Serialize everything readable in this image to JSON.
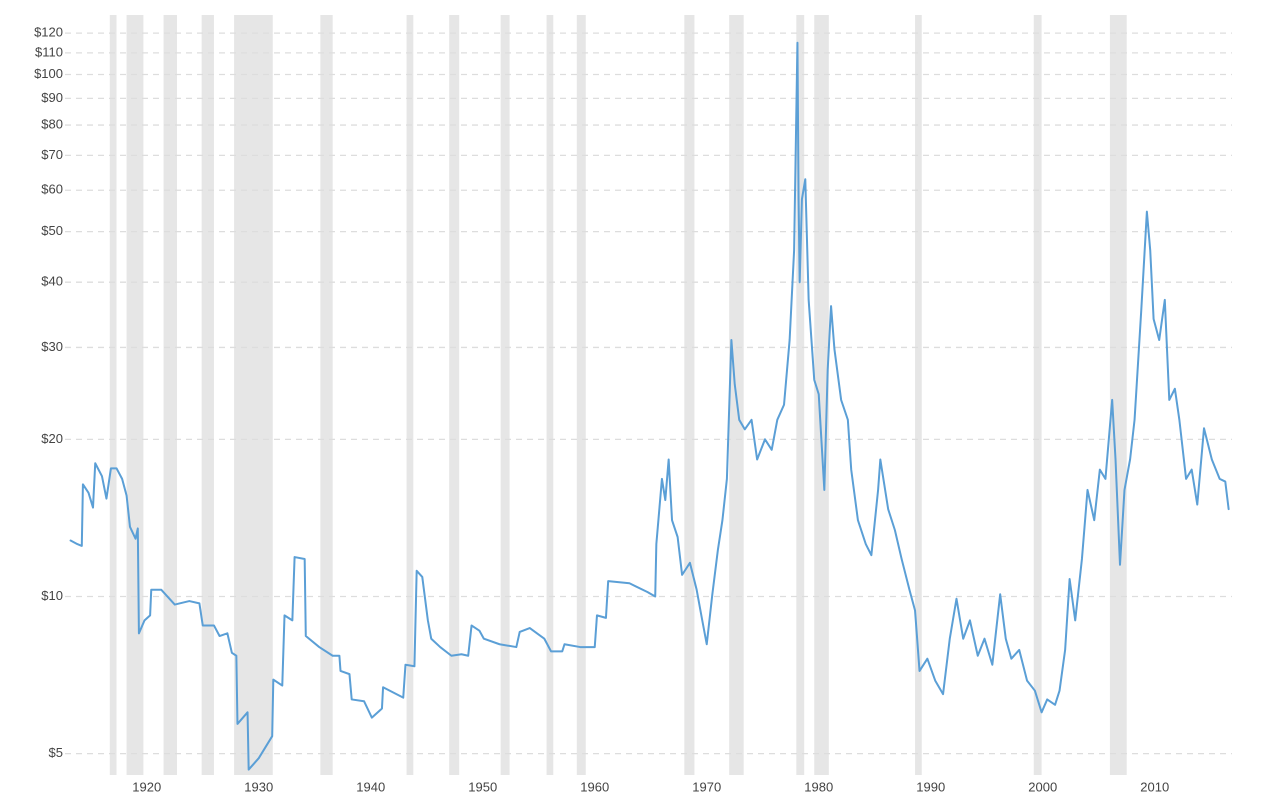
{
  "chart_data": {
    "type": "line",
    "log_scale": true,
    "grid": true,
    "color": "#5b9fd6",
    "band_color": "#e6e6e6",
    "xlim": [
      1912.7,
      2016.9
    ],
    "xticks": [
      1920,
      1930,
      1940,
      1950,
      1960,
      1970,
      1980,
      1990,
      2000,
      2010
    ],
    "ylim": [
      4.55,
      130
    ],
    "yticks": [
      {
        "value": 5,
        "label": "$5"
      },
      {
        "value": 10,
        "label": "$10"
      },
      {
        "value": 20,
        "label": "$20"
      },
      {
        "value": 30,
        "label": "$30"
      },
      {
        "value": 40,
        "label": "$40"
      },
      {
        "value": 50,
        "label": "$50"
      },
      {
        "value": 60,
        "label": "$60"
      },
      {
        "value": 70,
        "label": "$70"
      },
      {
        "value": 80,
        "label": "$80"
      },
      {
        "value": 90,
        "label": "$90"
      },
      {
        "value": 100,
        "label": "$100"
      },
      {
        "value": 110,
        "label": "$110"
      },
      {
        "value": 120,
        "label": "$120"
      }
    ],
    "bands": [
      [
        1916.7,
        1917.3
      ],
      [
        1918.2,
        1919.7
      ],
      [
        1921.5,
        1922.7
      ],
      [
        1924.9,
        1926.0
      ],
      [
        1927.8,
        1931.25
      ],
      [
        1935.5,
        1936.6
      ],
      [
        1943.2,
        1943.8
      ],
      [
        1947.0,
        1947.9
      ],
      [
        1951.6,
        1952.4
      ],
      [
        1955.7,
        1956.3
      ],
      [
        1958.4,
        1959.2
      ],
      [
        1968.0,
        1968.9
      ],
      [
        1972.0,
        1973.3
      ],
      [
        1978.0,
        1978.7
      ],
      [
        1979.6,
        1980.9
      ],
      [
        1988.6,
        1989.2
      ],
      [
        1999.2,
        1999.9
      ],
      [
        2006.0,
        2007.5
      ]
    ],
    "x": [
      1913.2,
      1913.8,
      1914.2,
      1914.3,
      1914.8,
      1915.2,
      1915.4,
      1916.0,
      1916.4,
      1916.8,
      1917.3,
      1917.8,
      1918.2,
      1918.5,
      1919.0,
      1919.2,
      1919.3,
      1919.8,
      1920.3,
      1920.4,
      1921.3,
      1922.5,
      1923.8,
      1924.7,
      1925.0,
      1926.0,
      1926.5,
      1927.2,
      1927.6,
      1928.0,
      1928.1,
      1929.0,
      1929.1,
      1930.0,
      1931.2,
      1931.3,
      1932.1,
      1932.3,
      1933.0,
      1933.2,
      1934.1,
      1934.2,
      1935.4,
      1936.6,
      1937.2,
      1937.3,
      1938.1,
      1938.3,
      1939.4,
      1940.1,
      1941.0,
      1941.1,
      1942.9,
      1943.1,
      1943.9,
      1944.1,
      1944.6,
      1945.1,
      1945.4,
      1946.2,
      1947.2,
      1948.1,
      1948.7,
      1949.0,
      1949.7,
      1950.1,
      1951.5,
      1953.0,
      1953.3,
      1954.2,
      1955.5,
      1956.1,
      1957.1,
      1957.3,
      1958.7,
      1960.0,
      1960.2,
      1961.0,
      1961.2,
      1963.1,
      1964.7,
      1965.4,
      1965.5,
      1966.0,
      1966.3,
      1966.6,
      1966.9,
      1967.4,
      1967.8,
      1968.5,
      1969.1,
      1969.6,
      1970.0,
      1970.5,
      1971.0,
      1971.4,
      1971.8,
      1972.2,
      1972.5,
      1972.9,
      1973.4,
      1974.0,
      1974.5,
      1975.2,
      1975.8,
      1976.3,
      1976.9,
      1977.4,
      1977.8,
      1978.1,
      1978.2,
      1978.3,
      1978.5,
      1978.8,
      1979.1,
      1979.6,
      1980.0,
      1980.5,
      1980.8,
      1981.1,
      1981.4,
      1982.0,
      1982.6,
      1982.9,
      1983.5,
      1984.2,
      1984.7,
      1985.3,
      1985.5,
      1986.2,
      1986.8,
      1987.4,
      1988.1,
      1988.6,
      1989.0,
      1989.7,
      1990.4,
      1991.1,
      1991.7,
      1992.3,
      1992.9,
      1993.5,
      1994.2,
      1994.8,
      1995.5,
      1996.2,
      1996.7,
      1997.2,
      1997.9,
      1998.6,
      1999.3,
      1999.9,
      2000.4,
      2001.1,
      2001.5,
      2002.0,
      2002.4,
      2002.9,
      2003.5,
      2004.0,
      2004.6,
      2005.1,
      2005.6,
      2006.2,
      2006.5,
      2006.9,
      2007.3,
      2007.8,
      2008.2,
      2008.8,
      2009.3,
      2009.6,
      2009.9,
      2010.4,
      2010.9,
      2011.3,
      2011.8,
      2012.2,
      2012.8,
      2013.3,
      2013.8,
      2014.4,
      2015.1,
      2015.8,
      2016.3,
      2016.6
    ],
    "values": [
      12.8,
      12.6,
      12.5,
      16.4,
      15.8,
      14.8,
      18.0,
      17.0,
      15.4,
      17.6,
      17.6,
      16.8,
      15.6,
      13.6,
      12.9,
      13.5,
      8.5,
      9.0,
      9.2,
      10.3,
      10.3,
      9.65,
      9.8,
      9.7,
      8.8,
      8.8,
      8.4,
      8.5,
      7.8,
      7.7,
      5.7,
      6.0,
      4.66,
      4.9,
      5.4,
      6.93,
      6.75,
      9.2,
      9.0,
      11.9,
      11.8,
      8.4,
      8.0,
      7.7,
      7.7,
      7.2,
      7.1,
      6.35,
      6.3,
      5.86,
      6.1,
      6.7,
      6.4,
      7.4,
      7.35,
      11.2,
      10.9,
      9.0,
      8.3,
      8.0,
      7.7,
      7.75,
      7.7,
      8.8,
      8.6,
      8.3,
      8.1,
      8.0,
      8.55,
      8.7,
      8.3,
      7.85,
      7.85,
      8.1,
      8.0,
      8.0,
      9.2,
      9.1,
      10.7,
      10.6,
      10.2,
      10.0,
      12.6,
      16.8,
      15.3,
      18.3,
      14.0,
      13.0,
      11.0,
      11.6,
      10.3,
      9.0,
      8.1,
      10.1,
      12.3,
      14.0,
      16.8,
      31.0,
      25.5,
      21.8,
      20.9,
      21.8,
      18.3,
      20.0,
      19.1,
      21.8,
      23.3,
      31.0,
      46.0,
      115.0,
      57.7,
      40.0,
      57.7,
      63.0,
      37.0,
      26.0,
      24.4,
      16.0,
      27.2,
      36.0,
      29.8,
      23.8,
      21.8,
      17.5,
      14.0,
      12.6,
      12.0,
      16.0,
      18.3,
      14.7,
      13.4,
      11.8,
      10.3,
      9.4,
      7.2,
      7.6,
      6.9,
      6.5,
      8.3,
      9.9,
      8.3,
      9.0,
      7.7,
      8.3,
      7.4,
      10.1,
      8.3,
      7.6,
      7.9,
      6.9,
      6.6,
      6.0,
      6.35,
      6.2,
      6.6,
      7.9,
      10.8,
      9.0,
      11.8,
      16.0,
      14.0,
      17.5,
      16.8,
      23.8,
      18.3,
      11.5,
      16.0,
      18.3,
      21.8,
      35.4,
      54.6,
      46.0,
      34.0,
      31.0,
      37.0,
      23.8,
      25.0,
      21.8,
      16.8,
      17.5,
      15.0,
      21.0,
      18.3,
      16.8,
      16.6,
      14.7
    ]
  }
}
